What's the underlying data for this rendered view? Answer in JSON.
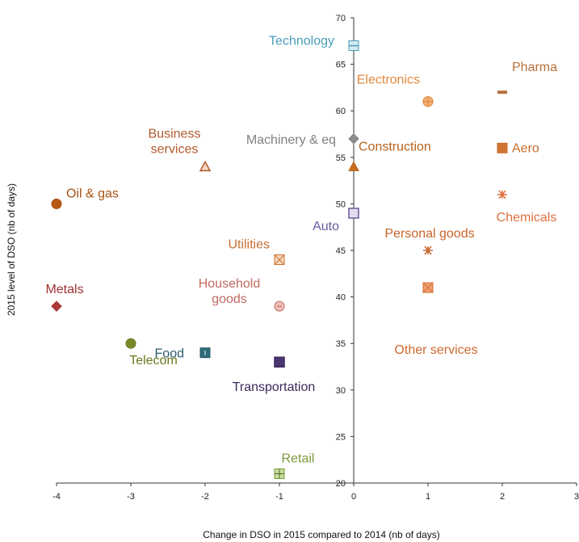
{
  "chart_data": {
    "type": "scatter",
    "title": "",
    "xlabel": "Change in DSO in 2015 compared to 2014 (nb of days)",
    "ylabel": "2015 level of DSO (nb of days)",
    "xlim": [
      -4,
      3
    ],
    "ylim": [
      20,
      70
    ],
    "xticks": [
      -4,
      -3,
      -2,
      -1,
      0,
      1,
      2,
      3
    ],
    "yticks": [
      20,
      25,
      30,
      35,
      40,
      45,
      50,
      55,
      60,
      65,
      70
    ],
    "grid": false,
    "points": [
      {
        "label": "Technology",
        "x": 0,
        "y": 67,
        "color": "#4a9bb8",
        "marker": "square-hline",
        "fill": "#d4ecf5"
      },
      {
        "label": "Pharma",
        "x": 2,
        "y": 62,
        "color": "#b8713a",
        "marker": "dash",
        "fill": "#b8713a"
      },
      {
        "label": "Electronics",
        "x": 1,
        "y": 61,
        "color": "#e08a3c",
        "marker": "circle-cross",
        "fill": "#f4b27a"
      },
      {
        "label": "Machinery  & eq",
        "x": 0,
        "y": 57,
        "color": "#808080",
        "marker": "diamond",
        "fill": "#8c8c8c"
      },
      {
        "label": "Aero",
        "x": 2,
        "y": 56,
        "color": "#c86a2a",
        "marker": "square",
        "fill": "#d07430"
      },
      {
        "label": "Construction",
        "x": 0,
        "y": 54,
        "color": "#b8641e",
        "marker": "triangle",
        "fill": "#c86d1e"
      },
      {
        "label": "Business services",
        "x": -2,
        "y": 54,
        "color": "#b05a2a",
        "marker": "triangle-open",
        "fill": "#f8d8c4"
      },
      {
        "label": "Chemicals",
        "x": 2,
        "y": 51,
        "color": "#e07040",
        "marker": "star",
        "fill": "#e07040"
      },
      {
        "label": "Oil & gas",
        "x": -4,
        "y": 50,
        "color": "#a85010",
        "marker": "circle",
        "fill": "#b85a14"
      },
      {
        "label": "Auto",
        "x": 0,
        "y": 49,
        "color": "#6a5a9a",
        "marker": "square-open",
        "fill": "#e4dcf0"
      },
      {
        "label": "Personal goods",
        "x": 1,
        "y": 45,
        "color": "#c8642a",
        "marker": "star",
        "fill": "#c8642a"
      },
      {
        "label": "Utilities",
        "x": -1,
        "y": 44,
        "color": "#c87030",
        "marker": "square-x",
        "fill": "#f8d8c0"
      },
      {
        "label": "Other services",
        "x": 1,
        "y": 41,
        "color": "#d06a30",
        "marker": "square-x",
        "fill": "#f0a070"
      },
      {
        "label": "Household goods",
        "x": -1,
        "y": 39,
        "color": "#c06a60",
        "marker": "circle-minus",
        "fill": "#f0c0b8"
      },
      {
        "label": "Metals",
        "x": -4,
        "y": 39,
        "color": "#a03030",
        "marker": "diamond",
        "fill": "#b03838"
      },
      {
        "label": "Telecom",
        "x": -3,
        "y": 35,
        "color": "#6a7a20",
        "marker": "circle",
        "fill": "#7a8a2a"
      },
      {
        "label": "Food",
        "x": -2,
        "y": 34,
        "color": "#2a5a6a",
        "marker": "square-dot",
        "fill": "#2e6a78"
      },
      {
        "label": "Transportation",
        "x": -1,
        "y": 33,
        "color": "#3a2a5a",
        "marker": "square-dark",
        "fill": "#4a3570"
      },
      {
        "label": "Retail",
        "x": -1,
        "y": 21,
        "color": "#7a9a3a",
        "marker": "square-plus",
        "fill": "#c8dca0"
      }
    ]
  }
}
